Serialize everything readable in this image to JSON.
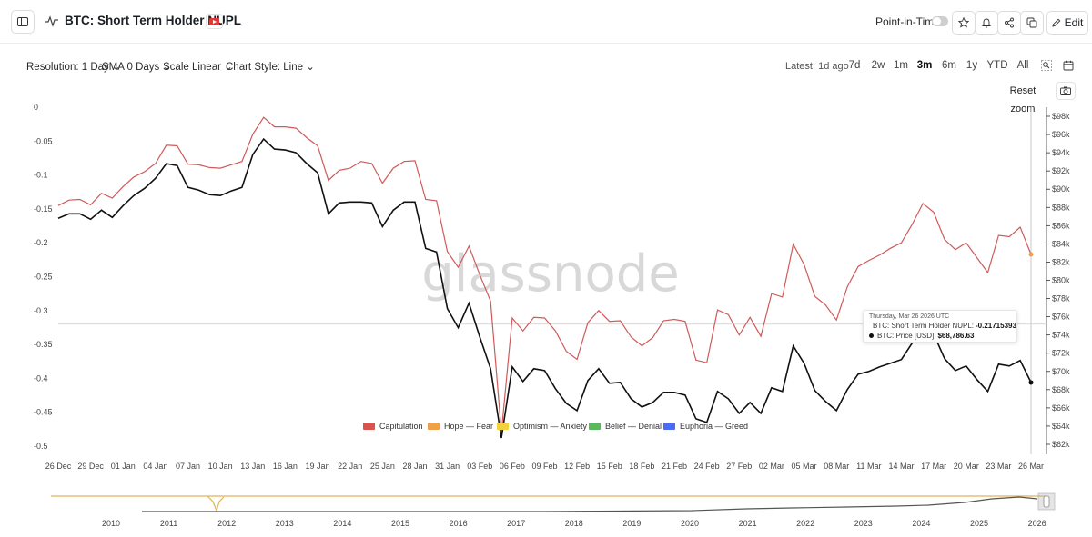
{
  "header": {
    "title": "BTC: Short Term Holder NUPL",
    "point_in_time": "Point-in-Time",
    "edit_label": "Edit"
  },
  "controls": {
    "resolution": "Resolution: 1 Day",
    "sma": "SMA 0 Days",
    "scale": "Scale Linear",
    "chart_style": "Chart Style: Line",
    "latest": "Latest: 1d ago",
    "ranges": [
      "7d",
      "2w",
      "1m",
      "3m",
      "6m",
      "1y",
      "YTD",
      "All"
    ],
    "active_range": "3m",
    "reset_zoom": "Reset zoom"
  },
  "tooltip": {
    "date": "Thursday, Mar 26 2026 UTC",
    "nupl_label": "BTC: Short Term Holder NUPL:",
    "nupl_value": "-0.21715393",
    "price_label": "BTC: Price [USD]:",
    "price_value": "$68,786.63"
  },
  "watermark": "glassnode",
  "colors": {
    "nupl_line": "#cf5a5a",
    "price_line": "#111111",
    "capitulation": "#d9534f",
    "hope_fear": "#f0a04b",
    "optimism_anxiety": "#f2d23c",
    "belief_denial": "#5cb85c",
    "euphoria_greed": "#4a6cf0",
    "navigator_price": "#555555",
    "navigator_nupl": "#e0b35a"
  },
  "chart_data": {
    "type": "line",
    "x_tick_labels": [
      "26 Dec",
      "29 Dec",
      "01 Jan",
      "04 Jan",
      "07 Jan",
      "10 Jan",
      "13 Jan",
      "16 Jan",
      "19 Jan",
      "22 Jan",
      "25 Jan",
      "28 Jan",
      "31 Jan",
      "03 Feb",
      "06 Feb",
      "09 Feb",
      "12 Feb",
      "15 Feb",
      "18 Feb",
      "21 Feb",
      "24 Feb",
      "27 Feb",
      "02 Mar",
      "05 Mar",
      "08 Mar",
      "11 Mar",
      "14 Mar",
      "17 Mar",
      "20 Mar",
      "23 Mar",
      "26 Mar"
    ],
    "y_left": {
      "ticks": [
        "0",
        "-0.05",
        "-0.1",
        "-0.15",
        "-0.2",
        "-0.25",
        "-0.3",
        "-0.35",
        "-0.4",
        "-0.45",
        "-0.5"
      ],
      "range": [
        -0.5,
        0
      ]
    },
    "y_right": {
      "ticks": [
        "$98k",
        "$96k",
        "$94k",
        "$92k",
        "$90k",
        "$88k",
        "$86k",
        "$84k",
        "$82k",
        "$80k",
        "$78k",
        "$76k",
        "$74k",
        "$72k",
        "$70k",
        "$68k",
        "$66k",
        "$64k",
        "$62k"
      ],
      "range": [
        62000,
        98000
      ]
    },
    "legend": [
      "Capitulation",
      "Hope — Fear",
      "Optimism — Anxiety",
      "Belief — Denial",
      "Euphoria — Greed"
    ],
    "series": [
      {
        "name": "BTC: Short Term Holder NUPL",
        "axis": "left",
        "values": [
          -0.145,
          -0.137,
          -0.136,
          -0.144,
          -0.127,
          -0.134,
          -0.117,
          -0.103,
          -0.095,
          -0.083,
          -0.056,
          -0.057,
          -0.084,
          -0.085,
          -0.089,
          -0.09,
          -0.085,
          -0.08,
          -0.04,
          -0.015,
          -0.029,
          -0.029,
          -0.031,
          -0.045,
          -0.057,
          -0.108,
          -0.093,
          -0.09,
          -0.08,
          -0.083,
          -0.112,
          -0.09,
          -0.08,
          -0.079,
          -0.136,
          -0.138,
          -0.213,
          -0.236,
          -0.205,
          -0.247,
          -0.286,
          -0.48,
          -0.311,
          -0.33,
          -0.31,
          -0.311,
          -0.33,
          -0.36,
          -0.372,
          -0.318,
          -0.3,
          -0.316,
          -0.315,
          -0.339,
          -0.352,
          -0.34,
          -0.315,
          -0.313,
          -0.316,
          -0.373,
          -0.377,
          -0.299,
          -0.306,
          -0.336,
          -0.31,
          -0.338,
          -0.275,
          -0.28,
          -0.202,
          -0.232,
          -0.279,
          -0.292,
          -0.314,
          -0.265,
          -0.235,
          -0.226,
          -0.218,
          -0.208,
          -0.2,
          -0.173,
          -0.142,
          -0.155,
          -0.195,
          -0.21,
          -0.2,
          -0.222,
          -0.244,
          -0.189,
          -0.191,
          -0.177,
          -0.217
        ]
      },
      {
        "name": "BTC: Price [USD]",
        "axis": "right",
        "values": [
          86800,
          87300,
          87300,
          86700,
          87700,
          86900,
          88200,
          89300,
          90100,
          91200,
          92800,
          92600,
          90200,
          89900,
          89400,
          89300,
          89800,
          90200,
          93800,
          95500,
          94400,
          94300,
          94000,
          92800,
          91800,
          87300,
          88500,
          88600,
          88600,
          88500,
          85900,
          87700,
          88600,
          88600,
          83500,
          83100,
          76900,
          74800,
          77500,
          73800,
          70300,
          62700,
          70500,
          68900,
          70300,
          70100,
          68100,
          66500,
          65700,
          69000,
          70300,
          68700,
          68800,
          67000,
          66100,
          66600,
          67700,
          67700,
          67400,
          64800,
          64400,
          67800,
          67000,
          65400,
          66600,
          65400,
          68200,
          67800,
          72800,
          70900,
          67900,
          66700,
          65700,
          68000,
          69700,
          70000,
          70500,
          70900,
          71300,
          73100,
          74800,
          74100,
          71400,
          70100,
          70600,
          69100,
          67800,
          70800,
          70600,
          71200,
          68786.63
        ]
      }
    ],
    "navigator_years": [
      "2010",
      "2011",
      "2012",
      "2013",
      "2014",
      "2015",
      "2016",
      "2017",
      "2018",
      "2019",
      "2020",
      "2021",
      "2022",
      "2023",
      "2024",
      "2025",
      "2026"
    ],
    "selected": {
      "date": "Mar 26 2026",
      "nupl": -0.21715393,
      "price": 68786.63
    }
  }
}
